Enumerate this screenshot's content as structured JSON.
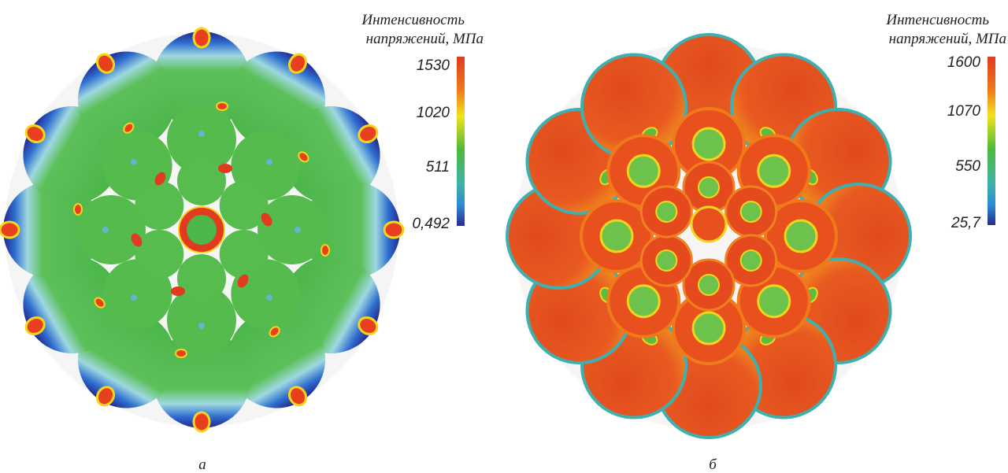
{
  "panels": [
    {
      "label": "а",
      "colorbar": {
        "title": [
          "Интенсивность",
          "напряжений, МПа"
        ],
        "ticks": [
          "1530",
          "1020",
          "511",
          "0,492"
        ]
      }
    },
    {
      "label": "б",
      "colorbar": {
        "title": [
          "Интенсивность",
          "напряжений, МПа"
        ],
        "ticks": [
          "1600",
          "1070",
          "550",
          "25,7"
        ]
      }
    }
  ]
}
